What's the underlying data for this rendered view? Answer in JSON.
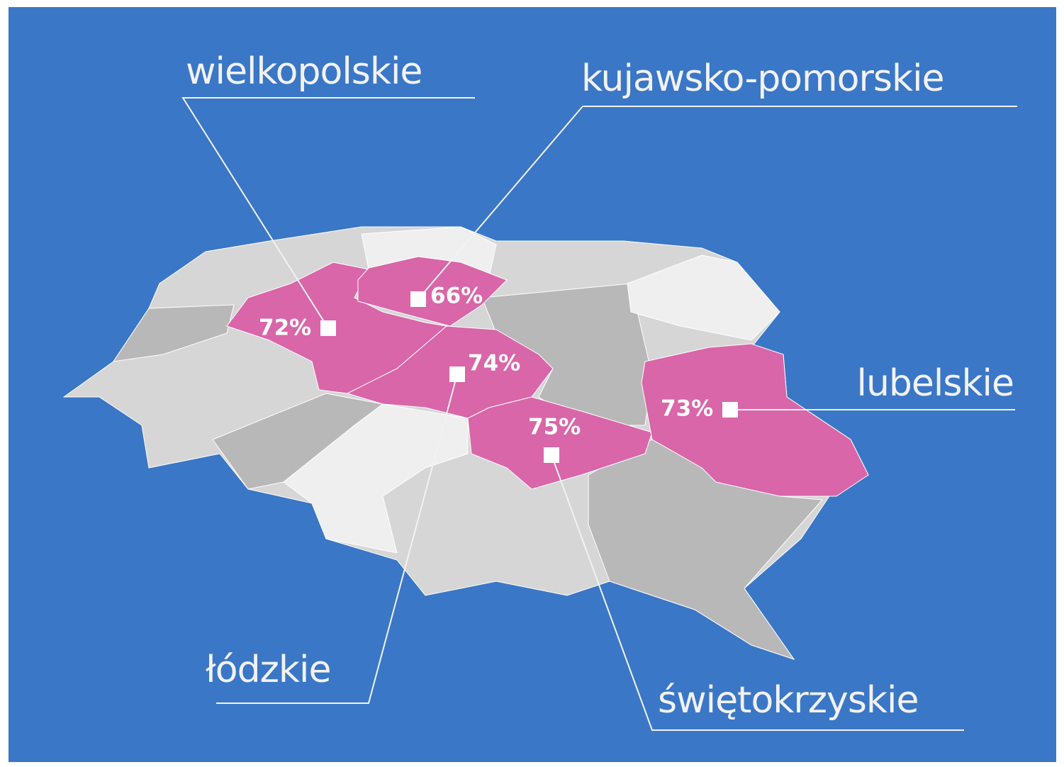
{
  "regions": [
    {
      "name": "wielkopolskie",
      "value": "72%"
    },
    {
      "name": "kujawsko-pomorskie",
      "value": "66%"
    },
    {
      "name": "lubelskie",
      "value": "73%"
    },
    {
      "name": "łódzkie",
      "value": "74%"
    },
    {
      "name": "świętokrzyskie",
      "value": "75%"
    }
  ]
}
